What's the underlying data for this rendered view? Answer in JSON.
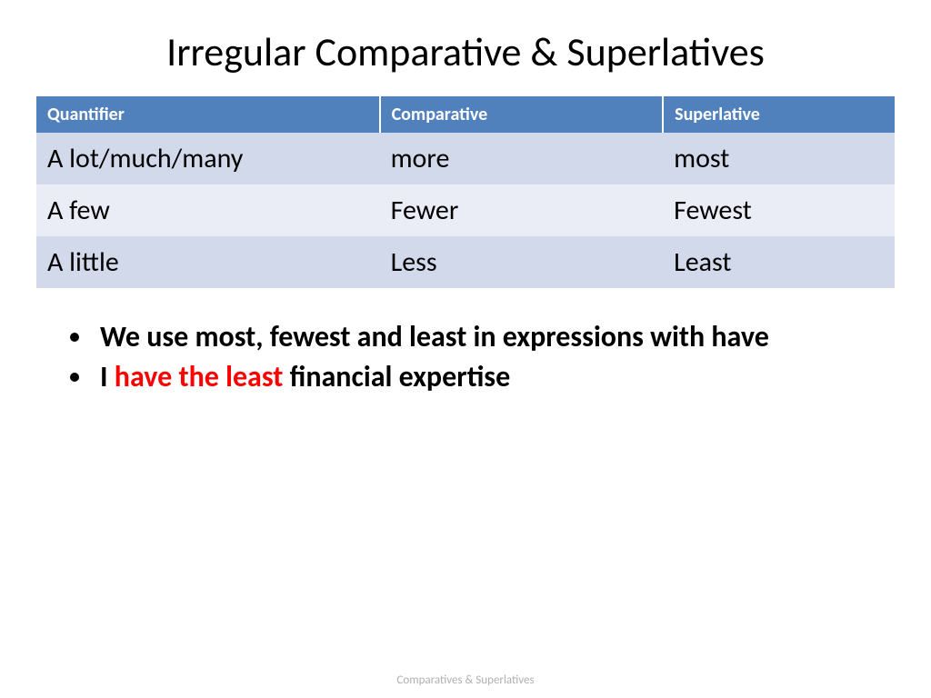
{
  "slide": {
    "title": "Irregular Comparative & Superlatives",
    "footer": "Comparatives & Superlatives"
  },
  "table": {
    "header_bg": "#5181bd",
    "header_border": "#ffffff",
    "row_bg_alt1": "#d1d9eb",
    "row_bg_alt2": "#eaedf5",
    "columns": [
      "Quantifier",
      "Comparative",
      "Superlative"
    ],
    "rows": [
      [
        "A lot/much/many",
        "more",
        "most"
      ],
      [
        "A few",
        "Fewer",
        "Fewest"
      ],
      [
        "A little",
        "Less",
        "Least"
      ]
    ]
  },
  "bullets": {
    "item1": "We use most, fewest and least in expressions with have",
    "item2_prefix": "I ",
    "item2_accent": "have the least",
    "item2_suffix": " financial expertise"
  }
}
